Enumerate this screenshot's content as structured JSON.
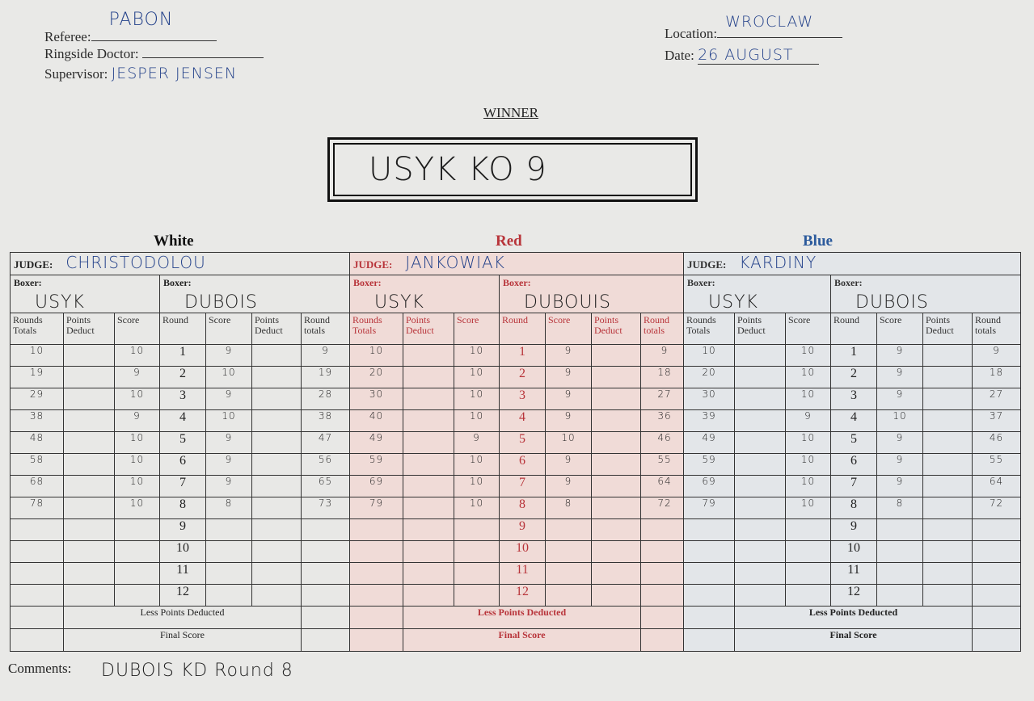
{
  "header": {
    "referee_label": "Referee:",
    "referee": "PABON",
    "doctor_label": "Ringside Doctor:",
    "doctor": "",
    "supervisor_label": "Supervisor:",
    "supervisor": "JESPER JENSEN",
    "location_label": "Location:",
    "location": "WROCLAW",
    "date_label": "Date:",
    "date": "26 AUGUST"
  },
  "winner": {
    "label": "WINNER",
    "value": "USYK KO 9"
  },
  "colors": {
    "white": "#111111",
    "red": "#b8343a",
    "blue": "#2b5a9c"
  },
  "columns": [
    "Rounds Totals",
    "Points Deduct",
    "Score",
    "Round",
    "Score",
    "Points Deduct",
    "Round totals"
  ],
  "panels": [
    {
      "color_label": "White",
      "theme": "white",
      "judge_label": "JUDGE:",
      "judge": "CHRISTODOLOU",
      "boxer_label": "Boxer:",
      "boxer_left": "USYK",
      "boxer_right": "DUBOIS",
      "rounds": [
        [
          "10",
          "",
          "10",
          "1",
          "9",
          "",
          "9"
        ],
        [
          "19",
          "",
          "9",
          "2",
          "10",
          "",
          "19"
        ],
        [
          "29",
          "",
          "10",
          "3",
          "9",
          "",
          "28"
        ],
        [
          "38",
          "",
          "9",
          "4",
          "10",
          "",
          "38"
        ],
        [
          "48",
          "",
          "10",
          "5",
          "9",
          "",
          "47"
        ],
        [
          "58",
          "",
          "10",
          "6",
          "9",
          "",
          "56"
        ],
        [
          "68",
          "",
          "10",
          "7",
          "9",
          "",
          "65"
        ],
        [
          "78",
          "",
          "10",
          "8",
          "8",
          "",
          "73"
        ],
        [
          "",
          "",
          "",
          "9",
          "",
          "",
          ""
        ],
        [
          "",
          "",
          "",
          "10",
          "",
          "",
          ""
        ],
        [
          "",
          "",
          "",
          "11",
          "",
          "",
          ""
        ],
        [
          "",
          "",
          "",
          "12",
          "",
          "",
          ""
        ]
      ],
      "less_points_label": "Less Points Deducted",
      "final_score_label": "Final Score"
    },
    {
      "color_label": "Red",
      "theme": "red",
      "judge_label": "JUDGE:",
      "judge": "JANKOWIAK",
      "boxer_label": "Boxer:",
      "boxer_left": "USYK",
      "boxer_right": "DUBOUIS",
      "rounds": [
        [
          "10",
          "",
          "10",
          "1",
          "9",
          "",
          "9"
        ],
        [
          "20",
          "",
          "10",
          "2",
          "9",
          "",
          "18"
        ],
        [
          "30",
          "",
          "10",
          "3",
          "9",
          "",
          "27"
        ],
        [
          "40",
          "",
          "10",
          "4",
          "9",
          "",
          "36"
        ],
        [
          "49",
          "",
          "9",
          "5",
          "10",
          "",
          "46"
        ],
        [
          "59",
          "",
          "10",
          "6",
          "9",
          "",
          "55"
        ],
        [
          "69",
          "",
          "10",
          "7",
          "9",
          "",
          "64"
        ],
        [
          "79",
          "",
          "10",
          "8",
          "8",
          "",
          "72"
        ],
        [
          "",
          "",
          "",
          "9",
          "",
          "",
          ""
        ],
        [
          "",
          "",
          "",
          "10",
          "",
          "",
          ""
        ],
        [
          "",
          "",
          "",
          "11",
          "",
          "",
          ""
        ],
        [
          "",
          "",
          "",
          "12",
          "",
          "",
          ""
        ]
      ],
      "less_points_label": "Less Points Deducted",
      "final_score_label": "Final Score"
    },
    {
      "color_label": "Blue",
      "theme": "blue",
      "judge_label": "JUDGE:",
      "judge": "KARDINY",
      "boxer_label": "Boxer:",
      "boxer_left": "USYK",
      "boxer_right": "DUBOIS",
      "rounds": [
        [
          "10",
          "",
          "10",
          "1",
          "9",
          "",
          "9"
        ],
        [
          "20",
          "",
          "10",
          "2",
          "9",
          "",
          "18"
        ],
        [
          "30",
          "",
          "10",
          "3",
          "9",
          "",
          "27"
        ],
        [
          "39",
          "",
          "9",
          "4",
          "10",
          "",
          "37"
        ],
        [
          "49",
          "",
          "10",
          "5",
          "9",
          "",
          "46"
        ],
        [
          "59",
          "",
          "10",
          "6",
          "9",
          "",
          "55"
        ],
        [
          "69",
          "",
          "10",
          "7",
          "9",
          "",
          "64"
        ],
        [
          "79",
          "",
          "10",
          "8",
          "8",
          "",
          "72"
        ],
        [
          "",
          "",
          "",
          "9",
          "",
          "",
          ""
        ],
        [
          "",
          "",
          "",
          "10",
          "",
          "",
          ""
        ],
        [
          "",
          "",
          "",
          "11",
          "",
          "",
          ""
        ],
        [
          "",
          "",
          "",
          "12",
          "",
          "",
          ""
        ]
      ],
      "less_points_label": "Less Points Deducted",
      "final_score_label": "Final Score"
    }
  ],
  "comments": {
    "label": "Comments:",
    "text": "DUBOIS KD Round 8"
  }
}
